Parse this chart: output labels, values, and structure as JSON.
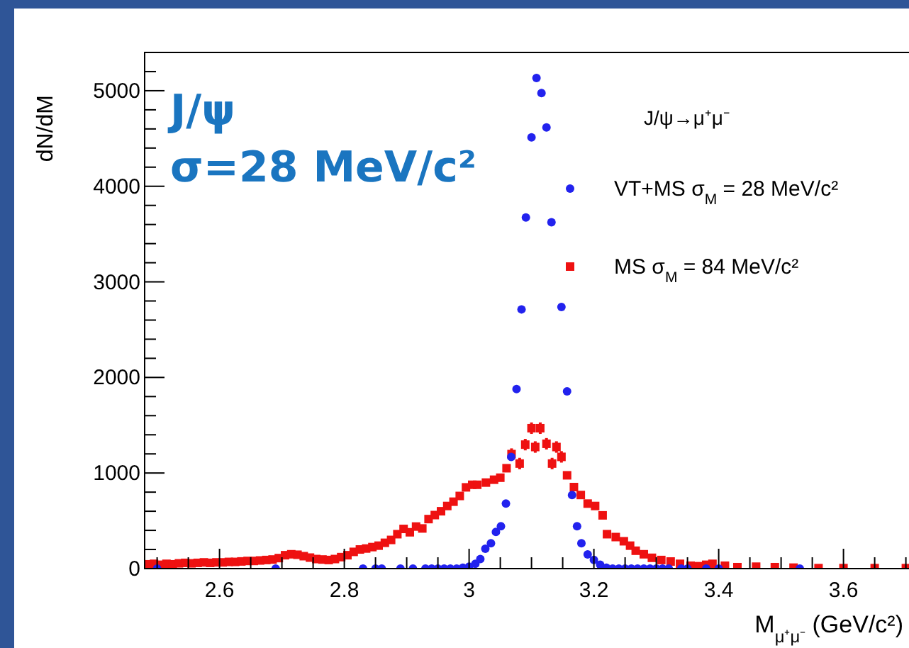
{
  "chart_data": {
    "type": "scatter",
    "xlabel": "M$_{μ⁺μ⁻}$ (GeV/c²)",
    "ylabel": "dN/dM",
    "legend_title": "J/ψ→μ⁺μ⁻",
    "legend": "top right",
    "marker": "circle",
    "grid": false,
    "annotations": [
      "J/ψ",
      "σ=28 MeV/c²"
    ],
    "xlim": [
      2.48,
      3.705
    ],
    "ylim": [
      0,
      5400
    ],
    "xticks": [
      {
        "value": 2.5,
        "label": null
      },
      {
        "value": 2.55,
        "label": null
      },
      2.6,
      {
        "value": 2.65,
        "label": null
      },
      {
        "value": 2.7,
        "label": null
      },
      {
        "value": 2.75,
        "label": null
      },
      2.8,
      {
        "value": 2.85,
        "label": null
      },
      {
        "value": 2.9,
        "label": null
      },
      {
        "value": 2.95,
        "label": null
      },
      3,
      {
        "value": 3.05,
        "label": null
      },
      {
        "value": 3.1,
        "label": null
      },
      {
        "value": 3.15,
        "label": null
      },
      3.2,
      {
        "value": 3.25,
        "label": null
      },
      {
        "value": 3.3,
        "label": null
      },
      {
        "value": 3.35,
        "label": null
      },
      3.4,
      {
        "value": 3.45,
        "label": null
      },
      {
        "value": 3.5,
        "label": null
      },
      {
        "value": 3.55,
        "label": null
      },
      3.6,
      {
        "value": 3.65,
        "label": null
      },
      {
        "value": 3.7,
        "label": null
      }
    ],
    "yticks": [
      0,
      {
        "value": 200,
        "label": null
      },
      {
        "value": 400,
        "label": null
      },
      {
        "value": 600,
        "label": null
      },
      {
        "value": 800,
        "label": null
      },
      1000,
      {
        "value": 1200,
        "label": null
      },
      {
        "value": 1400,
        "label": null
      },
      {
        "value": 1600,
        "label": null
      },
      {
        "value": 1800,
        "label": null
      },
      2000,
      {
        "value": 2200,
        "label": null
      },
      {
        "value": 2400,
        "label": null
      },
      {
        "value": 2600,
        "label": null
      },
      {
        "value": 2800,
        "label": null
      },
      3000,
      {
        "value": 3200,
        "label": null
      },
      {
        "value": 3400,
        "label": null
      },
      {
        "value": 3600,
        "label": null
      },
      {
        "value": 3800,
        "label": null
      },
      4000,
      {
        "value": 4200,
        "label": null
      },
      {
        "value": 4400,
        "label": null
      },
      {
        "value": 4600,
        "label": null
      },
      {
        "value": 4800,
        "label": null
      },
      5000,
      {
        "value": 5200,
        "label": null
      }
    ],
    "series": [
      {
        "name": "MS   σ$_{M}$ = 84 MeV/c²",
        "color": "#ee1111",
        "marker": "square",
        "x": [
          2.485,
          2.495,
          2.505,
          2.515,
          2.525,
          2.535,
          2.545,
          2.555,
          2.565,
          2.575,
          2.585,
          2.595,
          2.605,
          2.615,
          2.625,
          2.635,
          2.645,
          2.655,
          2.665,
          2.675,
          2.685,
          2.695,
          2.705,
          2.715,
          2.725,
          2.735,
          2.745,
          2.755,
          2.765,
          2.775,
          2.785,
          2.795,
          2.805,
          2.815,
          2.825,
          2.835,
          2.845,
          2.855,
          2.865,
          2.875,
          2.885,
          2.895,
          2.905,
          2.915,
          2.925,
          2.935,
          2.945,
          2.955,
          2.965,
          2.975,
          2.985,
          2.995,
          3.005,
          3.013,
          3.027,
          3.04,
          3.05,
          3.06,
          3.068,
          3.081,
          3.09,
          3.1,
          3.106,
          3.114,
          3.124,
          3.133,
          3.14,
          3.148,
          3.157,
          3.168,
          3.179,
          3.19,
          3.202,
          3.214,
          3.221,
          3.235,
          3.248,
          3.258,
          3.267,
          3.28,
          3.293,
          3.308,
          3.323,
          3.338,
          3.355,
          3.368,
          3.38,
          3.39,
          3.41,
          3.43,
          3.46,
          3.49,
          3.52,
          3.56,
          3.6,
          3.65,
          3.7
        ],
        "values": [
          45,
          50,
          40,
          50,
          45,
          55,
          60,
          55,
          60,
          65,
          60,
          65,
          65,
          70,
          70,
          75,
          80,
          80,
          85,
          90,
          95,
          110,
          140,
          150,
          145,
          130,
          115,
          100,
          95,
          90,
          100,
          120,
          140,
          175,
          200,
          210,
          225,
          240,
          270,
          300,
          360,
          415,
          380,
          440,
          420,
          518,
          560,
          600,
          655,
          700,
          760,
          850,
          877,
          877,
          900,
          930,
          951,
          1050,
          1198,
          1099,
          1297,
          1469,
          1272,
          1469,
          1306,
          1099,
          1272,
          1169,
          976,
          853,
          770,
          680,
          655,
          557,
          360,
          330,
          286,
          240,
          187,
          150,
          113,
          90,
          74,
          50,
          30,
          25,
          40,
          50,
          30,
          15,
          20,
          15,
          10,
          5,
          5,
          5,
          5
        ],
        "errors": [
          null,
          null,
          null,
          null,
          null,
          null,
          null,
          null,
          null,
          null,
          null,
          null,
          null,
          null,
          null,
          null,
          null,
          null,
          null,
          null,
          null,
          null,
          null,
          null,
          null,
          null,
          null,
          null,
          null,
          null,
          null,
          null,
          null,
          null,
          null,
          null,
          null,
          null,
          null,
          null,
          null,
          null,
          null,
          null,
          null,
          null,
          null,
          null,
          null,
          null,
          null,
          null,
          null,
          null,
          null,
          null,
          null,
          null,
          60,
          60,
          60,
          60,
          60,
          60,
          60,
          60,
          60,
          60,
          null,
          null,
          null,
          null,
          null,
          null,
          null,
          null,
          null,
          null,
          null,
          null,
          null,
          null,
          null,
          null,
          null,
          null,
          null,
          null,
          null,
          null,
          null,
          null,
          null,
          null,
          null,
          null,
          null
        ]
      },
      {
        "name": "VT+MS   σ$_{M}$ = 28 MeV/c²",
        "color": "#2222ee",
        "x": [
          2.5,
          2.69,
          2.83,
          2.85,
          2.86,
          2.89,
          2.91,
          2.93,
          2.94,
          2.95,
          2.96,
          2.97,
          2.98,
          2.99,
          3.0,
          3.01,
          3.018,
          3.026,
          3.035,
          3.043,
          3.051,
          3.059,
          3.0675,
          3.076,
          3.084,
          3.091,
          3.1,
          3.108,
          3.116,
          3.124,
          3.132,
          3.148,
          3.157,
          3.165,
          3.173,
          3.18,
          3.19,
          3.2,
          3.21,
          3.22,
          3.23,
          3.24,
          3.25,
          3.26,
          3.27,
          3.28,
          3.29,
          3.3,
          3.31,
          3.32,
          3.34,
          3.35,
          3.38,
          3.4,
          3.53
        ],
        "values": [
          0,
          0,
          0,
          0,
          0,
          0,
          0,
          0,
          0,
          0,
          0,
          0,
          0,
          10,
          20,
          50,
          100,
          207,
          266,
          384,
          444,
          680,
          1169,
          1879,
          2712,
          3673,
          4512,
          5133,
          4975,
          4615,
          3624,
          2737,
          1854,
          769,
          444,
          266,
          148,
          90,
          40,
          10,
          0,
          0,
          0,
          0,
          0,
          0,
          0,
          0,
          0,
          0,
          0,
          0,
          0,
          0,
          0
        ]
      }
    ]
  }
}
